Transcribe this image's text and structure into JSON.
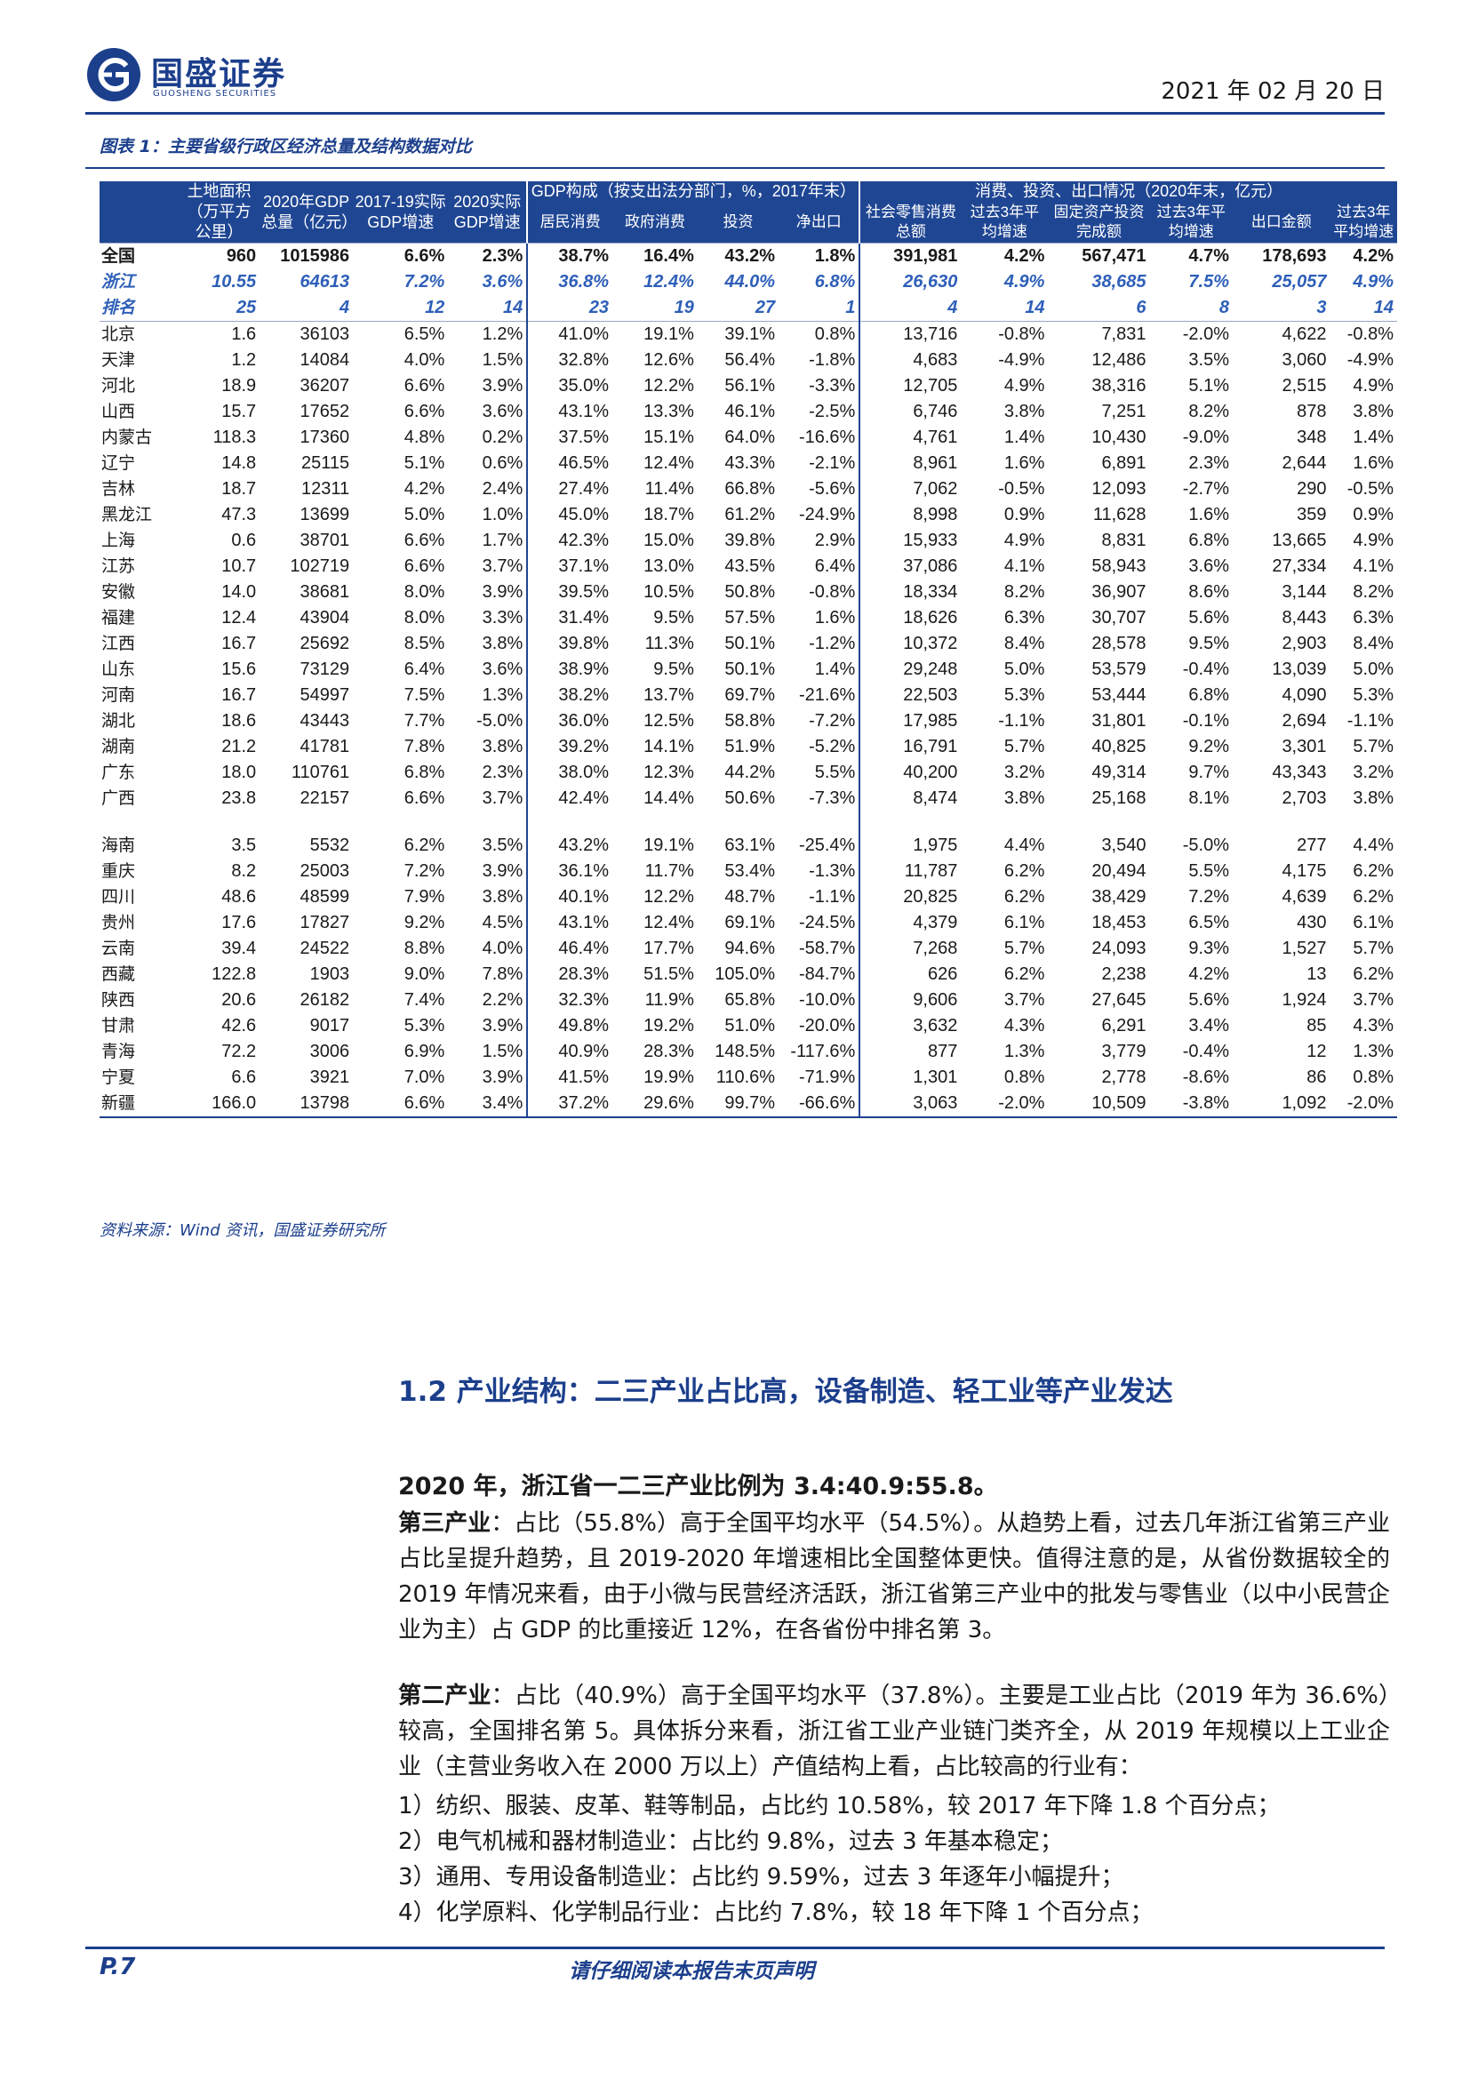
{
  "header": {
    "logo_cn": "国盛证券",
    "logo_en": "GUOSHENG SECURITIES",
    "date": "2021 年 02 月 20 日"
  },
  "figure_title": "图表 1：主要省级行政区经济总量及结构数据对比",
  "table": {
    "header_top": {
      "c1": "土地面积（万平方公里）",
      "c2": "2020年GDP总量（亿元）",
      "c3": "2017-19实际GDP增速",
      "c4": "2020实际GDP增速",
      "group1": "GDP构成（按支出法分部门，%，2017年末）",
      "group2": "消费、投资、出口情况（2020年末，亿元）"
    },
    "header_sub": [
      "居民消费",
      "政府消费",
      "投资",
      "净出口",
      "社会零售消费总额",
      "过去3年平均增速",
      "固定资产投资完成额",
      "过去3年平均增速",
      "出口金额",
      "过去3年平均增速"
    ],
    "row_all": [
      "全国",
      "960",
      "1015986",
      "6.6%",
      "2.3%",
      "38.7%",
      "16.4%",
      "43.2%",
      "1.8%",
      "391,981",
      "4.2%",
      "567,471",
      "4.7%",
      "178,693",
      "4.2%"
    ],
    "row_zj": [
      "浙江",
      "10.55",
      "64613",
      "7.2%",
      "3.6%",
      "36.8%",
      "12.4%",
      "44.0%",
      "6.8%",
      "26,630",
      "4.9%",
      "38,685",
      "7.5%",
      "25,057",
      "4.9%"
    ],
    "row_rank": [
      "排名",
      "25",
      "4",
      "12",
      "14",
      "23",
      "19",
      "27",
      "1",
      "4",
      "14",
      "6",
      "8",
      "3",
      "14"
    ],
    "rows_a": [
      [
        "北京",
        "1.6",
        "36103",
        "6.5%",
        "1.2%",
        "41.0%",
        "19.1%",
        "39.1%",
        "0.8%",
        "13,716",
        "-0.8%",
        "7,831",
        "-2.0%",
        "4,622",
        "-0.8%"
      ],
      [
        "天津",
        "1.2",
        "14084",
        "4.0%",
        "1.5%",
        "32.8%",
        "12.6%",
        "56.4%",
        "-1.8%",
        "4,683",
        "-4.9%",
        "12,486",
        "3.5%",
        "3,060",
        "-4.9%"
      ],
      [
        "河北",
        "18.9",
        "36207",
        "6.6%",
        "3.9%",
        "35.0%",
        "12.2%",
        "56.1%",
        "-3.3%",
        "12,705",
        "4.9%",
        "38,316",
        "5.1%",
        "2,515",
        "4.9%"
      ],
      [
        "山西",
        "15.7",
        "17652",
        "6.6%",
        "3.6%",
        "43.1%",
        "13.3%",
        "46.1%",
        "-2.5%",
        "6,746",
        "3.8%",
        "7,251",
        "8.2%",
        "878",
        "3.8%"
      ],
      [
        "内蒙古",
        "118.3",
        "17360",
        "4.8%",
        "0.2%",
        "37.5%",
        "15.1%",
        "64.0%",
        "-16.6%",
        "4,761",
        "1.4%",
        "10,430",
        "-9.0%",
        "348",
        "1.4%"
      ],
      [
        "辽宁",
        "14.8",
        "25115",
        "5.1%",
        "0.6%",
        "46.5%",
        "12.4%",
        "43.3%",
        "-2.1%",
        "8,961",
        "1.6%",
        "6,891",
        "2.3%",
        "2,644",
        "1.6%"
      ],
      [
        "吉林",
        "18.7",
        "12311",
        "4.2%",
        "2.4%",
        "27.4%",
        "11.4%",
        "66.8%",
        "-5.6%",
        "7,062",
        "-0.5%",
        "12,093",
        "-2.7%",
        "290",
        "-0.5%"
      ],
      [
        "黑龙江",
        "47.3",
        "13699",
        "5.0%",
        "1.0%",
        "45.0%",
        "18.7%",
        "61.2%",
        "-24.9%",
        "8,998",
        "0.9%",
        "11,628",
        "1.6%",
        "359",
        "0.9%"
      ],
      [
        "上海",
        "0.6",
        "38701",
        "6.6%",
        "1.7%",
        "42.3%",
        "15.0%",
        "39.8%",
        "2.9%",
        "15,933",
        "4.9%",
        "8,831",
        "6.8%",
        "13,665",
        "4.9%"
      ],
      [
        "江苏",
        "10.7",
        "102719",
        "6.6%",
        "3.7%",
        "37.1%",
        "13.0%",
        "43.5%",
        "6.4%",
        "37,086",
        "4.1%",
        "58,943",
        "3.6%",
        "27,334",
        "4.1%"
      ],
      [
        "安徽",
        "14.0",
        "38681",
        "8.0%",
        "3.9%",
        "39.5%",
        "10.5%",
        "50.8%",
        "-0.8%",
        "18,334",
        "8.2%",
        "36,907",
        "8.6%",
        "3,144",
        "8.2%"
      ],
      [
        "福建",
        "12.4",
        "43904",
        "8.0%",
        "3.3%",
        "31.4%",
        "9.5%",
        "57.5%",
        "1.6%",
        "18,626",
        "6.3%",
        "30,707",
        "5.6%",
        "8,443",
        "6.3%"
      ],
      [
        "江西",
        "16.7",
        "25692",
        "8.5%",
        "3.8%",
        "39.8%",
        "11.3%",
        "50.1%",
        "-1.2%",
        "10,372",
        "8.4%",
        "28,578",
        "9.5%",
        "2,903",
        "8.4%"
      ],
      [
        "山东",
        "15.6",
        "73129",
        "6.4%",
        "3.6%",
        "38.9%",
        "9.5%",
        "50.1%",
        "1.4%",
        "29,248",
        "5.0%",
        "53,579",
        "-0.4%",
        "13,039",
        "5.0%"
      ],
      [
        "河南",
        "16.7",
        "54997",
        "7.5%",
        "1.3%",
        "38.2%",
        "13.7%",
        "69.7%",
        "-21.6%",
        "22,503",
        "5.3%",
        "53,444",
        "6.8%",
        "4,090",
        "5.3%"
      ],
      [
        "湖北",
        "18.6",
        "43443",
        "7.7%",
        "-5.0%",
        "36.0%",
        "12.5%",
        "58.8%",
        "-7.2%",
        "17,985",
        "-1.1%",
        "31,801",
        "-0.1%",
        "2,694",
        "-1.1%"
      ],
      [
        "湖南",
        "21.2",
        "41781",
        "7.8%",
        "3.8%",
        "39.2%",
        "14.1%",
        "51.9%",
        "-5.2%",
        "16,791",
        "5.7%",
        "40,825",
        "9.2%",
        "3,301",
        "5.7%"
      ],
      [
        "广东",
        "18.0",
        "110761",
        "6.8%",
        "2.3%",
        "38.0%",
        "12.3%",
        "44.2%",
        "5.5%",
        "40,200",
        "3.2%",
        "49,314",
        "9.7%",
        "43,343",
        "3.2%"
      ],
      [
        "广西",
        "23.8",
        "22157",
        "6.6%",
        "3.7%",
        "42.4%",
        "14.4%",
        "50.6%",
        "-7.3%",
        "8,474",
        "3.8%",
        "25,168",
        "8.1%",
        "2,703",
        "3.8%"
      ]
    ],
    "rows_b": [
      [
        "海南",
        "3.5",
        "5532",
        "6.2%",
        "3.5%",
        "43.2%",
        "19.1%",
        "63.1%",
        "-25.4%",
        "1,975",
        "4.4%",
        "3,540",
        "-5.0%",
        "277",
        "4.4%"
      ],
      [
        "重庆",
        "8.2",
        "25003",
        "7.2%",
        "3.9%",
        "36.1%",
        "11.7%",
        "53.4%",
        "-1.3%",
        "11,787",
        "6.2%",
        "20,494",
        "5.5%",
        "4,175",
        "6.2%"
      ],
      [
        "四川",
        "48.6",
        "48599",
        "7.9%",
        "3.8%",
        "40.1%",
        "12.2%",
        "48.7%",
        "-1.1%",
        "20,825",
        "6.2%",
        "38,429",
        "7.2%",
        "4,639",
        "6.2%"
      ],
      [
        "贵州",
        "17.6",
        "17827",
        "9.2%",
        "4.5%",
        "43.1%",
        "12.4%",
        "69.1%",
        "-24.5%",
        "4,379",
        "6.1%",
        "18,453",
        "6.5%",
        "430",
        "6.1%"
      ],
      [
        "云南",
        "39.4",
        "24522",
        "8.8%",
        "4.0%",
        "46.4%",
        "17.7%",
        "94.6%",
        "-58.7%",
        "7,268",
        "5.7%",
        "24,093",
        "9.3%",
        "1,527",
        "5.7%"
      ],
      [
        "西藏",
        "122.8",
        "1903",
        "9.0%",
        "7.8%",
        "28.3%",
        "51.5%",
        "105.0%",
        "-84.7%",
        "626",
        "6.2%",
        "2,238",
        "4.2%",
        "13",
        "6.2%"
      ],
      [
        "陕西",
        "20.6",
        "26182",
        "7.4%",
        "2.2%",
        "32.3%",
        "11.9%",
        "65.8%",
        "-10.0%",
        "9,606",
        "3.7%",
        "27,645",
        "5.6%",
        "1,924",
        "3.7%"
      ],
      [
        "甘肃",
        "42.6",
        "9017",
        "5.3%",
        "3.9%",
        "49.8%",
        "19.2%",
        "51.0%",
        "-20.0%",
        "3,632",
        "4.3%",
        "6,291",
        "3.4%",
        "85",
        "4.3%"
      ],
      [
        "青海",
        "72.2",
        "3006",
        "6.9%",
        "1.5%",
        "40.9%",
        "28.3%",
        "148.5%",
        "-117.6%",
        "877",
        "1.3%",
        "3,779",
        "-0.4%",
        "12",
        "1.3%"
      ],
      [
        "宁夏",
        "6.6",
        "3921",
        "7.0%",
        "3.9%",
        "41.5%",
        "19.9%",
        "110.6%",
        "-71.9%",
        "1,301",
        "0.8%",
        "2,778",
        "-8.6%",
        "86",
        "0.8%"
      ],
      [
        "新疆",
        "166.0",
        "13798",
        "6.6%",
        "3.4%",
        "37.2%",
        "29.6%",
        "99.7%",
        "-66.6%",
        "3,063",
        "-2.0%",
        "10,509",
        "-3.8%",
        "1,092",
        "-2.0%"
      ]
    ]
  },
  "source_note": "资料来源：Wind 资讯，国盛证券研究所",
  "section_title": "1.2 产业结构：二三产业占比高，设备制造、轻工业等产业发达",
  "lead": "2020 年，浙江省一二三产业比例为 3.4:40.9:55.8。",
  "p1_kw": "第三产业",
  "p1_text": "：占比（55.8%）高于全国平均水平（54.5%）。从趋势上看，过去几年浙江省第三产业占比呈提升趋势，且 2019-2020 年增速相比全国整体更快。值得注意的是，从省份数据较全的 2019 年情况来看，由于小微与民营经济活跃，浙江省第三产业中的批发与零售业（以中小民营企业为主）占 GDP 的比重接近 12%，在各省份中排名第 3。",
  "p2_kw": "第二产业",
  "p2_text": "：占比（40.9%）高于全国平均水平（37.8%）。主要是工业占比（2019 年为 36.6%）较高，全国排名第 5。具体拆分来看，浙江省工业产业链门类齐全，从 2019 年规模以上工业企业（主营业务收入在 2000 万以上）产值结构上看，占比较高的行业有：",
  "items": [
    "1）纺织、服装、皮革、鞋等制品，占比约 10.58%，较 2017 年下降 1.8 个百分点；",
    "2）电气机械和器材制造业：占比约 9.8%，过去 3 年基本稳定；",
    "3）通用、专用设备制造业：占比约 9.59%，过去 3 年逐年小幅提升；",
    "4）化学原料、化学制品行业：占比约 7.8%，较 18 年下降 1 个百分点；"
  ],
  "footer": {
    "page": "P.7",
    "note": "请仔细阅读本报告末页声明"
  }
}
